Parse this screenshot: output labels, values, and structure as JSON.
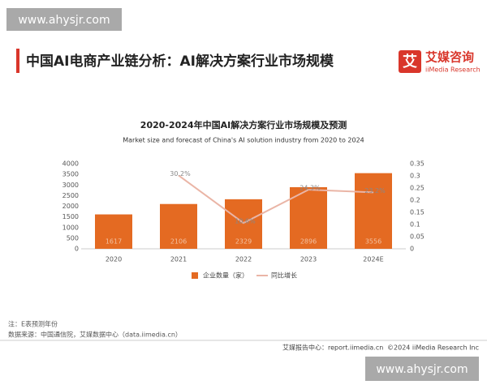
{
  "header": {
    "title": "中国AI电商产业链分析：AI解决方案行业市场规模",
    "logo": "艾",
    "brand": "艾媒咨询",
    "brand_en": "iiMedia Research"
  },
  "watermarks": [
    "www.ahysjr.com",
    "www.ahysjr.com"
  ],
  "chart_data": {
    "type": "bar-line",
    "title": "2020-2024年中国AI解决方案行业市场规模及预测",
    "subtitle": "Market size and forecast of China's AI solution industry from 2020 to 2024",
    "categories": [
      "2020",
      "2021",
      "2022",
      "2023",
      "2024E"
    ],
    "series": [
      {
        "name": "企业数量（家）",
        "type": "bar",
        "color": "#e46a22",
        "values": [
          1617,
          2106,
          2329,
          2896,
          3556
        ]
      },
      {
        "name": "同比增长",
        "type": "line",
        "axis": "y2",
        "color": "#eab5a6",
        "values": [
          null,
          0.302,
          0.106,
          0.243,
          0.232
        ],
        "value_labels": [
          null,
          "30.2%",
          "10.6%",
          "24.3%",
          "23.2%"
        ]
      }
    ],
    "ylim": [
      0,
      4000
    ],
    "yticks": [
      0,
      500,
      1000,
      1500,
      2000,
      2500,
      3000,
      3500,
      4000
    ],
    "y2lim": [
      0,
      0.35
    ],
    "y2ticks": [
      0,
      0.05,
      0.1,
      0.15,
      0.2,
      0.25,
      0.3,
      0.35
    ],
    "legend": "bottom"
  },
  "notes": [
    "注：E表预测年份",
    "数据来源：中国通信院，艾媒数据中心（data.iimedia.cn）"
  ],
  "footer": {
    "left": "艾媒报告中心：report.iimedia.cn",
    "right": "©2024 iiMedia Research Inc"
  }
}
